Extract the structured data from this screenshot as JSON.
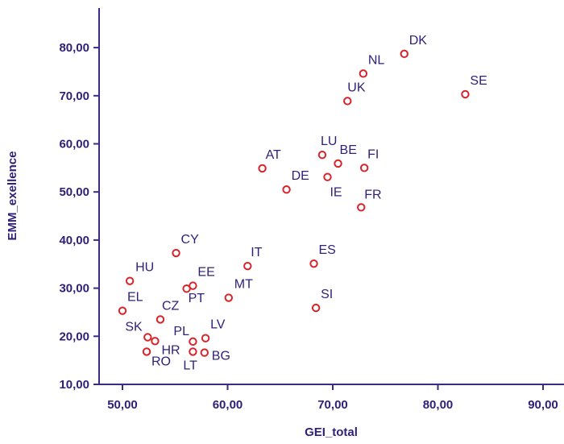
{
  "chart_data": {
    "type": "scatter",
    "xlabel": "GEI_total",
    "ylabel": "EMM_exellence",
    "xlim": [
      48,
      92
    ],
    "ylim": [
      10,
      90
    ],
    "x_ticks": [
      "50,00",
      "60,00",
      "70,00",
      "80,00",
      "90,00"
    ],
    "y_ticks": [
      "10,00",
      "20,00",
      "30,00",
      "40,00",
      "50,00",
      "60,00",
      "70,00",
      "80,00"
    ],
    "grid": false,
    "marker_color": "#d8232a",
    "text_color": "#2e1f78",
    "points": [
      {
        "label": "DK",
        "x": 76.8,
        "y": 78.7
      },
      {
        "label": "NL",
        "x": 72.9,
        "y": 74.6
      },
      {
        "label": "SE",
        "x": 82.6,
        "y": 70.3
      },
      {
        "label": "UK",
        "x": 71.4,
        "y": 68.9
      },
      {
        "label": "LU",
        "x": 69.0,
        "y": 57.7
      },
      {
        "label": "BE",
        "x": 70.5,
        "y": 55.9
      },
      {
        "label": "FI",
        "x": 73.0,
        "y": 55.0
      },
      {
        "label": "AT",
        "x": 63.3,
        "y": 54.9
      },
      {
        "label": "IE",
        "x": 69.5,
        "y": 53.1
      },
      {
        "label": "DE",
        "x": 65.6,
        "y": 50.5
      },
      {
        "label": "FR",
        "x": 72.7,
        "y": 46.8
      },
      {
        "label": "CY",
        "x": 55.1,
        "y": 37.3
      },
      {
        "label": "ES",
        "x": 68.2,
        "y": 35.1
      },
      {
        "label": "IT",
        "x": 61.9,
        "y": 34.6
      },
      {
        "label": "HU",
        "x": 50.7,
        "y": 31.5
      },
      {
        "label": "EE",
        "x": 56.7,
        "y": 30.5
      },
      {
        "label": "PT",
        "x": 56.1,
        "y": 29.9
      },
      {
        "label": "MT",
        "x": 60.1,
        "y": 28.0
      },
      {
        "label": "SI",
        "x": 68.4,
        "y": 25.9
      },
      {
        "label": "EL",
        "x": 50.0,
        "y": 25.3
      },
      {
        "label": "CZ",
        "x": 53.6,
        "y": 23.5
      },
      {
        "label": "SK",
        "x": 52.4,
        "y": 19.8
      },
      {
        "label": "LV",
        "x": 57.9,
        "y": 19.6
      },
      {
        "label": "HR",
        "x": 53.1,
        "y": 19.0
      },
      {
        "label": "PL",
        "x": 56.7,
        "y": 18.9
      },
      {
        "label": "RO",
        "x": 52.3,
        "y": 16.8
      },
      {
        "label": "LT",
        "x": 56.7,
        "y": 16.8
      },
      {
        "label": "BG",
        "x": 57.8,
        "y": 16.6
      }
    ]
  }
}
